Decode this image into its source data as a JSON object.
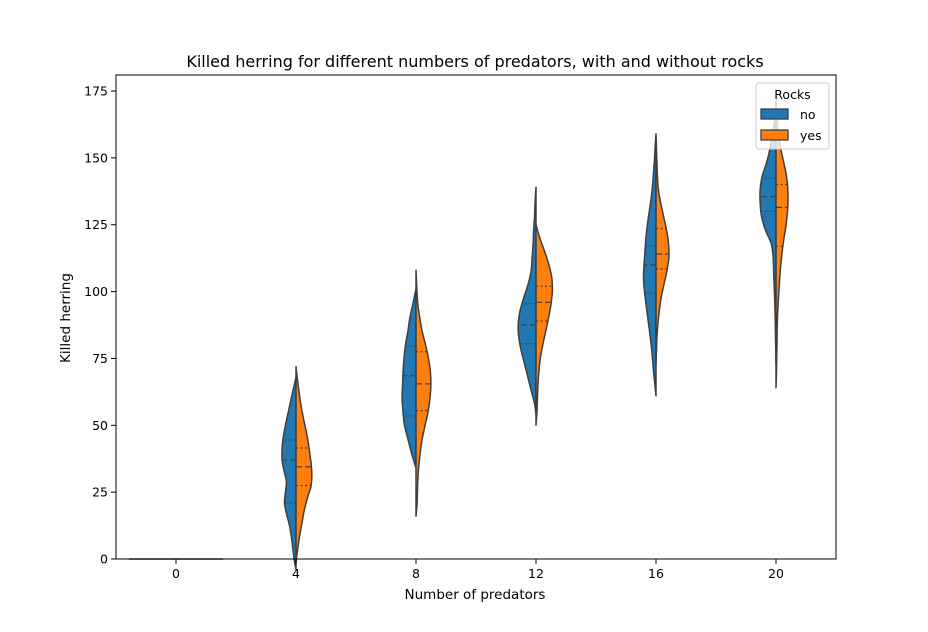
{
  "chart_data": {
    "type": "violin",
    "title": "Killed herring for different numbers of predators, with and without rocks",
    "xlabel": "Number of predators",
    "ylabel": "Killed herring",
    "categories": [
      "0",
      "4",
      "8",
      "12",
      "16",
      "20"
    ],
    "ylim": [
      0,
      181
    ],
    "yticks": [
      0,
      25,
      50,
      75,
      100,
      125,
      150,
      175
    ],
    "grid": false,
    "split": true,
    "inner": "quartile",
    "legend": {
      "title": "Rocks",
      "placement": "upper-right"
    },
    "series": [
      {
        "name": "no",
        "color": "#1f77b4",
        "violins": [
          {
            "ymin": 0,
            "ymax": 0,
            "q1": 0,
            "median": 0,
            "q3": 0,
            "profile": [
              [
                0,
                0.98
              ]
            ]
          },
          {
            "ymin": -4,
            "ymax": 68,
            "q1": 21,
            "median": 37,
            "q3": 44.5,
            "profile": [
              [
                -4,
                0
              ],
              [
                0,
                0.04
              ],
              [
                6,
                0.08
              ],
              [
                12,
                0.13
              ],
              [
                17,
                0.2
              ],
              [
                21,
                0.24
              ],
              [
                25,
                0.22
              ],
              [
                29,
                0.2
              ],
              [
                33,
                0.25
              ],
              [
                37,
                0.29
              ],
              [
                41,
                0.29
              ],
              [
                45,
                0.27
              ],
              [
                50,
                0.22
              ],
              [
                55,
                0.16
              ],
              [
                60,
                0.1
              ],
              [
                64,
                0.05
              ],
              [
                68,
                0
              ]
            ]
          },
          {
            "ymin": 34,
            "ymax": 101,
            "q1": 53.5,
            "median": 68.5,
            "q3": 79.5,
            "profile": [
              [
                34,
                0
              ],
              [
                40,
                0.1
              ],
              [
                45,
                0.17
              ],
              [
                50,
                0.24
              ],
              [
                55,
                0.27
              ],
              [
                60,
                0.29
              ],
              [
                65,
                0.28
              ],
              [
                70,
                0.27
              ],
              [
                75,
                0.25
              ],
              [
                80,
                0.22
              ],
              [
                85,
                0.17
              ],
              [
                90,
                0.13
              ],
              [
                95,
                0.07
              ],
              [
                101,
                0
              ]
            ]
          },
          {
            "ymin": 54,
            "ymax": 139,
            "q1": 80.5,
            "median": 87.5,
            "q3": 95.5,
            "profile": [
              [
                54,
                0
              ],
              [
                58,
                0.03
              ],
              [
                63,
                0.1
              ],
              [
                68,
                0.17
              ],
              [
                73,
                0.24
              ],
              [
                78,
                0.31
              ],
              [
                83,
                0.36
              ],
              [
                88,
                0.37
              ],
              [
                93,
                0.33
              ],
              [
                98,
                0.25
              ],
              [
                103,
                0.16
              ],
              [
                108,
                0.1
              ],
              [
                113,
                0.08
              ],
              [
                118,
                0.06
              ],
              [
                123,
                0.05
              ],
              [
                128,
                0.03
              ],
              [
                133,
                0.02
              ],
              [
                139,
                0
              ]
            ]
          },
          {
            "ymin": 61,
            "ymax": 159,
            "q1": 99.5,
            "median": 110,
            "q3": 117,
            "profile": [
              [
                61,
                0
              ],
              [
                70,
                0.05
              ],
              [
                80,
                0.1
              ],
              [
                90,
                0.17
              ],
              [
                100,
                0.24
              ],
              [
                105,
                0.26
              ],
              [
                110,
                0.25
              ],
              [
                115,
                0.23
              ],
              [
                120,
                0.21
              ],
              [
                125,
                0.18
              ],
              [
                130,
                0.14
              ],
              [
                135,
                0.1
              ],
              [
                140,
                0.07
              ],
              [
                145,
                0.05
              ],
              [
                150,
                0.03
              ],
              [
                155,
                0.015
              ],
              [
                159,
                0
              ]
            ]
          },
          {
            "ymin": 73,
            "ymax": 171,
            "q1": 130,
            "median": 135.5,
            "q3": 142.5,
            "profile": [
              [
                73,
                0
              ],
              [
                78,
                0.005
              ],
              [
                83,
                0.01
              ],
              [
                88,
                0.015
              ],
              [
                93,
                0.02
              ],
              [
                98,
                0.03
              ],
              [
                103,
                0.04
              ],
              [
                108,
                0.05
              ],
              [
                113,
                0.06
              ],
              [
                118,
                0.1
              ],
              [
                123,
                0.22
              ],
              [
                128,
                0.3
              ],
              [
                133,
                0.33
              ],
              [
                138,
                0.33
              ],
              [
                143,
                0.29
              ],
              [
                148,
                0.2
              ],
              [
                153,
                0.13
              ],
              [
                158,
                0.08
              ],
              [
                163,
                0.04
              ],
              [
                167,
                0.02
              ],
              [
                171,
                0
              ]
            ]
          }
        ]
      },
      {
        "name": "yes",
        "color": "#ff7f0e",
        "violins": [
          {
            "ymin": 0,
            "ymax": 0,
            "q1": 0,
            "median": 0,
            "q3": 0,
            "profile": [
              [
                0,
                0.98
              ]
            ]
          },
          {
            "ymin": -1,
            "ymax": 72,
            "q1": 27.5,
            "median": 34.5,
            "q3": 41.5,
            "profile": [
              [
                -1,
                0
              ],
              [
                3,
                0.03
              ],
              [
                8,
                0.07
              ],
              [
                13,
                0.12
              ],
              [
                18,
                0.17
              ],
              [
                23,
                0.24
              ],
              [
                27,
                0.31
              ],
              [
                31,
                0.33
              ],
              [
                35,
                0.32
              ],
              [
                39,
                0.29
              ],
              [
                43,
                0.26
              ],
              [
                48,
                0.21
              ],
              [
                53,
                0.15
              ],
              [
                58,
                0.1
              ],
              [
                63,
                0.06
              ],
              [
                67,
                0.03
              ],
              [
                72,
                0
              ]
            ]
          },
          {
            "ymin": 16,
            "ymax": 108,
            "q1": 55.5,
            "median": 65.5,
            "q3": 77.5,
            "profile": [
              [
                16,
                0
              ],
              [
                20,
                0.02
              ],
              [
                25,
                0.03
              ],
              [
                30,
                0.04
              ],
              [
                35,
                0.06
              ],
              [
                40,
                0.09
              ],
              [
                45,
                0.13
              ],
              [
                50,
                0.19
              ],
              [
                55,
                0.25
              ],
              [
                60,
                0.29
              ],
              [
                65,
                0.31
              ],
              [
                70,
                0.3
              ],
              [
                75,
                0.26
              ],
              [
                80,
                0.2
              ],
              [
                85,
                0.13
              ],
              [
                90,
                0.08
              ],
              [
                95,
                0.04
              ],
              [
                100,
                0.02
              ],
              [
                108,
                0
              ]
            ]
          },
          {
            "ymin": 50,
            "ymax": 125,
            "q1": 89,
            "median": 96,
            "q3": 102,
            "profile": [
              [
                50,
                0
              ],
              [
                55,
                0.02
              ],
              [
                60,
                0.03
              ],
              [
                65,
                0.04
              ],
              [
                70,
                0.06
              ],
              [
                75,
                0.09
              ],
              [
                80,
                0.14
              ],
              [
                85,
                0.2
              ],
              [
                90,
                0.26
              ],
              [
                95,
                0.31
              ],
              [
                100,
                0.34
              ],
              [
                105,
                0.33
              ],
              [
                110,
                0.27
              ],
              [
                115,
                0.18
              ],
              [
                120,
                0.08
              ],
              [
                125,
                0
              ]
            ]
          },
          {
            "ymin": 73,
            "ymax": 158,
            "q1": 108.5,
            "median": 114,
            "q3": 123.5,
            "profile": [
              [
                73,
                0
              ],
              [
                78,
                0.01
              ],
              [
                83,
                0.02
              ],
              [
                88,
                0.04
              ],
              [
                93,
                0.07
              ],
              [
                98,
                0.11
              ],
              [
                103,
                0.17
              ],
              [
                108,
                0.23
              ],
              [
                113,
                0.27
              ],
              [
                118,
                0.26
              ],
              [
                123,
                0.22
              ],
              [
                128,
                0.16
              ],
              [
                133,
                0.1
              ],
              [
                138,
                0.05
              ],
              [
                143,
                0.03
              ],
              [
                148,
                0.02
              ],
              [
                153,
                0.01
              ],
              [
                158,
                0
              ]
            ]
          },
          {
            "ymin": 64,
            "ymax": 171,
            "q1": 117,
            "median": 131.5,
            "q3": 140,
            "profile": [
              [
                64,
                0
              ],
              [
                70,
                0.01
              ],
              [
                80,
                0.02
              ],
              [
                90,
                0.03
              ],
              [
                100,
                0.06
              ],
              [
                110,
                0.1
              ],
              [
                118,
                0.15
              ],
              [
                125,
                0.21
              ],
              [
                130,
                0.24
              ],
              [
                135,
                0.25
              ],
              [
                140,
                0.24
              ],
              [
                145,
                0.2
              ],
              [
                150,
                0.14
              ],
              [
                155,
                0.08
              ],
              [
                160,
                0.04
              ],
              [
                165,
                0.02
              ],
              [
                171,
                0
              ]
            ]
          }
        ]
      }
    ]
  }
}
